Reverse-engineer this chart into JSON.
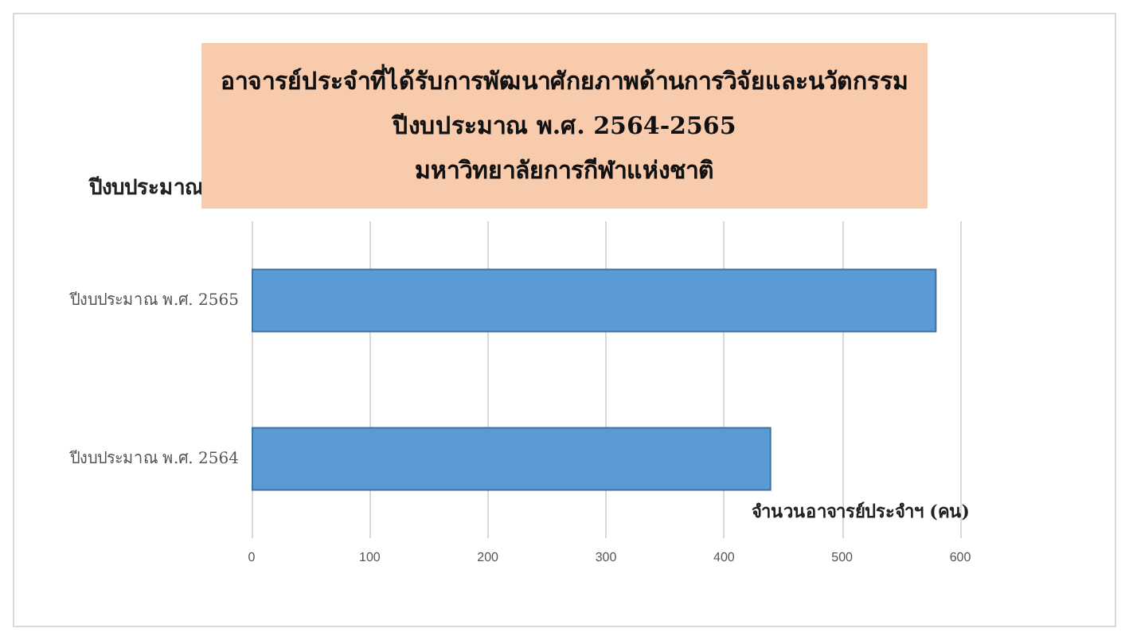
{
  "chart_data": {
    "type": "bar",
    "orientation": "horizontal",
    "title": "อาจารย์ประจำที่ได้รับการพัฒนาศักยภาพด้านการวิจัยและนวัตกรรม\nปีงบประมาณ พ.ศ. 2564-2565\nมหาวิทยาลัยการกีฬาแห่งชาติ",
    "ylabel": "ปีงบประมาณ",
    "xlabel": "จำนวนอาจารย์ประจำฯ (คน)",
    "categories": [
      "ปีงบประมาณ พ.ศ. 2565",
      "ปีงบประมาณ พ.ศ. 2564"
    ],
    "values": [
      580,
      440
    ],
    "color": "#5b9bd5",
    "xlim": [
      0,
      600
    ],
    "xticks": [
      0,
      100,
      200,
      300,
      400,
      500,
      600
    ],
    "grid": "x"
  }
}
